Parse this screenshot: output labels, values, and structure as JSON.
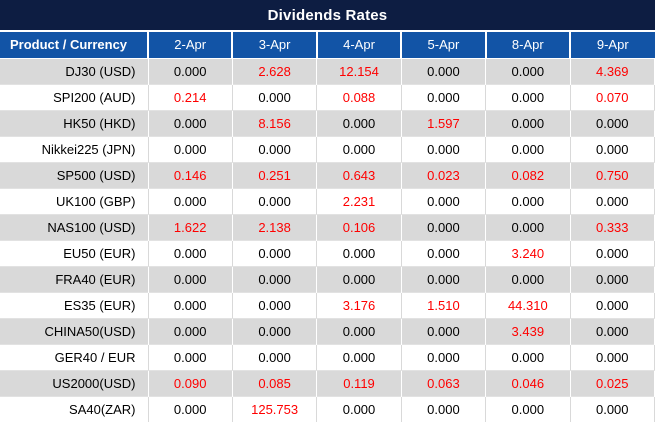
{
  "title": "Dividends Rates",
  "table": {
    "product_header": "Product / Currency",
    "date_columns": [
      "2-Apr",
      "3-Apr",
      "4-Apr",
      "5-Apr",
      "8-Apr",
      "9-Apr"
    ],
    "rows": [
      {
        "product": "DJ30 (USD)",
        "values": [
          "0.000",
          "2.628",
          "12.154",
          "0.000",
          "0.000",
          "4.369"
        ]
      },
      {
        "product": "SPI200 (AUD)",
        "values": [
          "0.214",
          "0.000",
          "0.088",
          "0.000",
          "0.000",
          "0.070"
        ]
      },
      {
        "product": "HK50 (HKD)",
        "values": [
          "0.000",
          "8.156",
          "0.000",
          "1.597",
          "0.000",
          "0.000"
        ]
      },
      {
        "product": "Nikkei225 (JPN)",
        "values": [
          "0.000",
          "0.000",
          "0.000",
          "0.000",
          "0.000",
          "0.000"
        ]
      },
      {
        "product": "SP500 (USD)",
        "values": [
          "0.146",
          "0.251",
          "0.643",
          "0.023",
          "0.082",
          "0.750"
        ]
      },
      {
        "product": "UK100 (GBP)",
        "values": [
          "0.000",
          "0.000",
          "2.231",
          "0.000",
          "0.000",
          "0.000"
        ]
      },
      {
        "product": "NAS100 (USD)",
        "values": [
          "1.622",
          "2.138",
          "0.106",
          "0.000",
          "0.000",
          "0.333"
        ]
      },
      {
        "product": "EU50 (EUR)",
        "values": [
          "0.000",
          "0.000",
          "0.000",
          "0.000",
          "3.240",
          "0.000"
        ]
      },
      {
        "product": "FRA40 (EUR)",
        "values": [
          "0.000",
          "0.000",
          "0.000",
          "0.000",
          "0.000",
          "0.000"
        ]
      },
      {
        "product": "ES35 (EUR)",
        "values": [
          "0.000",
          "0.000",
          "3.176",
          "1.510",
          "44.310",
          "0.000"
        ]
      },
      {
        "product": "CHINA50(USD)",
        "values": [
          "0.000",
          "0.000",
          "0.000",
          "0.000",
          "3.439",
          "0.000"
        ]
      },
      {
        "product": "GER40 / EUR",
        "values": [
          "0.000",
          "0.000",
          "0.000",
          "0.000",
          "0.000",
          "0.000"
        ]
      },
      {
        "product": "US2000(USD)",
        "values": [
          "0.090",
          "0.085",
          "0.119",
          "0.063",
          "0.046",
          "0.025"
        ]
      },
      {
        "product": "SA40(ZAR)",
        "values": [
          "0.000",
          "125.753",
          "0.000",
          "0.000",
          "0.000",
          "0.000"
        ]
      }
    ]
  },
  "colors": {
    "title_bar_bg": "#0d1d42",
    "header_bg": "#1254a6",
    "stripe_bg": "#d9d9d9",
    "zero_value_text": "#000000",
    "nonzero_value_text": "#ff0000"
  }
}
